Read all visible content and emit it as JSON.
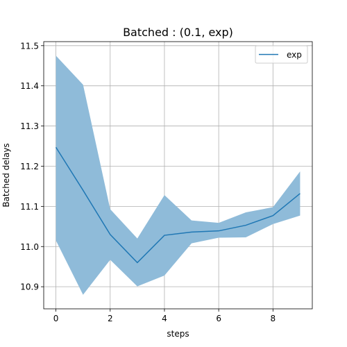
{
  "chart_data": {
    "type": "line",
    "title": "Batched : (0.1, exp)",
    "xlabel": "steps",
    "ylabel": "Batched delays",
    "x": [
      0,
      1,
      2,
      3,
      4,
      5,
      6,
      7,
      8,
      9
    ],
    "series": [
      {
        "name": "exp",
        "color": "#1f77b4",
        "values": [
          11.247,
          11.14,
          11.03,
          10.96,
          11.028,
          11.036,
          11.039,
          11.053,
          11.077,
          11.132
        ],
        "band_upper": [
          11.475,
          11.403,
          11.093,
          11.02,
          11.128,
          11.065,
          11.059,
          11.085,
          11.098,
          11.187
        ],
        "band_lower": [
          11.015,
          10.88,
          10.967,
          10.901,
          10.928,
          11.008,
          11.022,
          11.023,
          11.056,
          11.077
        ],
        "band_color": "#8fbbd9"
      }
    ],
    "xlim": [
      -0.45,
      9.45
    ],
    "ylim": [
      10.845,
      11.51
    ],
    "xticks": [
      0,
      2,
      4,
      6,
      8
    ],
    "yticks": [
      10.9,
      11.0,
      11.1,
      11.2,
      11.3,
      11.4,
      11.5
    ],
    "xtick_labels": [
      "0",
      "2",
      "4",
      "6",
      "8"
    ],
    "ytick_labels": [
      "10.9",
      "11.0",
      "11.1",
      "11.2",
      "11.3",
      "11.4",
      "11.5"
    ],
    "grid": true,
    "legend_position": "top-right"
  }
}
